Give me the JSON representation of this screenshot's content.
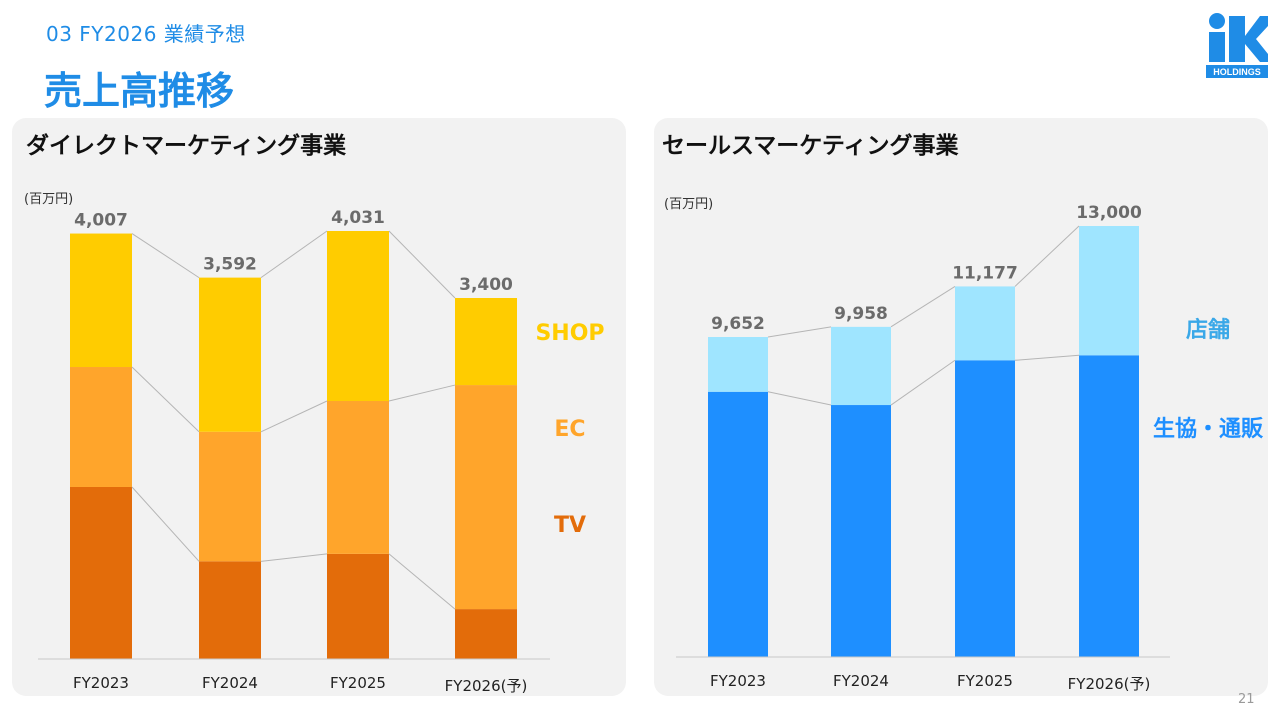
{
  "header": {
    "section": "03  FY2026 業績予想",
    "title": "売上高推移",
    "logo_text": "HOLDINGS",
    "page_number": "21"
  },
  "colors": {
    "accent": "#1f8ce6",
    "tv": "#e36c0a",
    "ec": "#ffa52b",
    "shop": "#ffcc00",
    "coop": "#1e8fff",
    "store": "#9fe5ff",
    "label_gray": "#6b6b6b"
  },
  "chart_data": [
    {
      "type": "bar",
      "stacked": true,
      "title": "ダイレクトマーケティング事業",
      "unit": "(百万円)",
      "categories": [
        "FY2023",
        "FY2024",
        "FY2025",
        "FY2026(予)"
      ],
      "series": [
        {
          "name": "TV",
          "values": [
            1620,
            920,
            990,
            470
          ],
          "color": "#e36c0a"
        },
        {
          "name": "EC",
          "values": [
            1130,
            1220,
            1440,
            2110
          ],
          "color": "#ffa52b"
        },
        {
          "name": "SHOP",
          "values": [
            1257,
            1452,
            1601,
            820
          ],
          "color": "#ffcc00"
        }
      ],
      "totals": [
        4007,
        3592,
        4031,
        3400
      ],
      "total_labels": [
        "4,007",
        "3,592",
        "4,031",
        "3,400"
      ],
      "ylim": [
        0,
        4031
      ],
      "legend": "right"
    },
    {
      "type": "bar",
      "stacked": true,
      "title": "セールスマーケティング事業",
      "unit": "(百万円)",
      "categories": [
        "FY2023",
        "FY2024",
        "FY2025",
        "FY2026(予)"
      ],
      "series": [
        {
          "name": "生協・通販",
          "values": [
            8000,
            7600,
            8950,
            9100
          ],
          "color": "#1e8fff"
        },
        {
          "name": "店舗",
          "values": [
            1652,
            2358,
            2227,
            3900
          ],
          "color": "#9fe5ff"
        }
      ],
      "totals": [
        9652,
        9958,
        11177,
        13000
      ],
      "total_labels": [
        "9,652",
        "9,958",
        "11,177",
        "13,000"
      ],
      "ylim": [
        0,
        13000
      ],
      "legend": "right"
    }
  ]
}
